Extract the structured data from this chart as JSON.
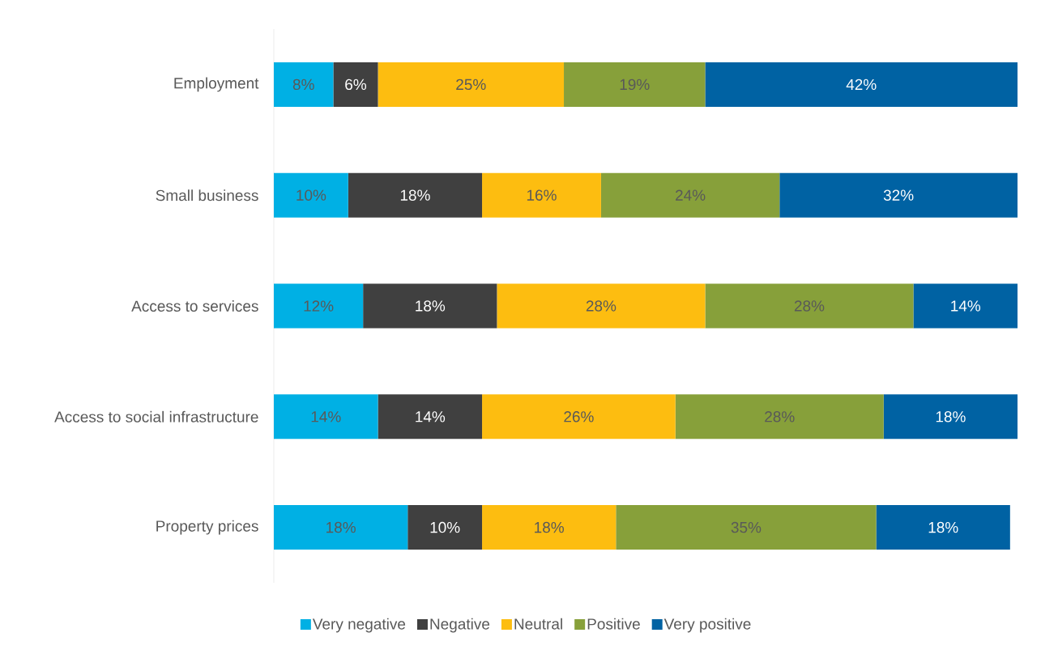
{
  "chart_data": {
    "type": "bar",
    "orientation": "horizontal",
    "stacked": true,
    "legend": "bottom",
    "categories": [
      "Employment",
      "Small business",
      "Access to services",
      "Access to social infrastructure",
      "Property prices"
    ],
    "series": [
      {
        "name": "Very negative",
        "color": "#00b0e4",
        "values": [
          8,
          10,
          12,
          14,
          18
        ],
        "value_labels": [
          "8%",
          "10%",
          "12%",
          "14%",
          "18%"
        ]
      },
      {
        "name": "Negative",
        "color": "#404040",
        "values": [
          6,
          18,
          18,
          14,
          10
        ],
        "value_labels": [
          "6%",
          "18%",
          "18%",
          "14%",
          "10%"
        ]
      },
      {
        "name": "Neutral",
        "color": "#fdbd10",
        "values": [
          25,
          16,
          28,
          26,
          18
        ],
        "value_labels": [
          "25%",
          "16%",
          "28%",
          "26%",
          "18%"
        ]
      },
      {
        "name": "Positive",
        "color": "#87a03a",
        "values": [
          19,
          24,
          28,
          28,
          35
        ],
        "value_labels": [
          "19%",
          "24%",
          "28%",
          "28%",
          "35%"
        ]
      },
      {
        "name": "Very positive",
        "color": "#0062a3",
        "values": [
          42,
          32,
          14,
          18,
          18
        ],
        "value_labels": [
          "42%",
          "32%",
          "14%",
          "18%",
          "18%"
        ]
      }
    ]
  }
}
